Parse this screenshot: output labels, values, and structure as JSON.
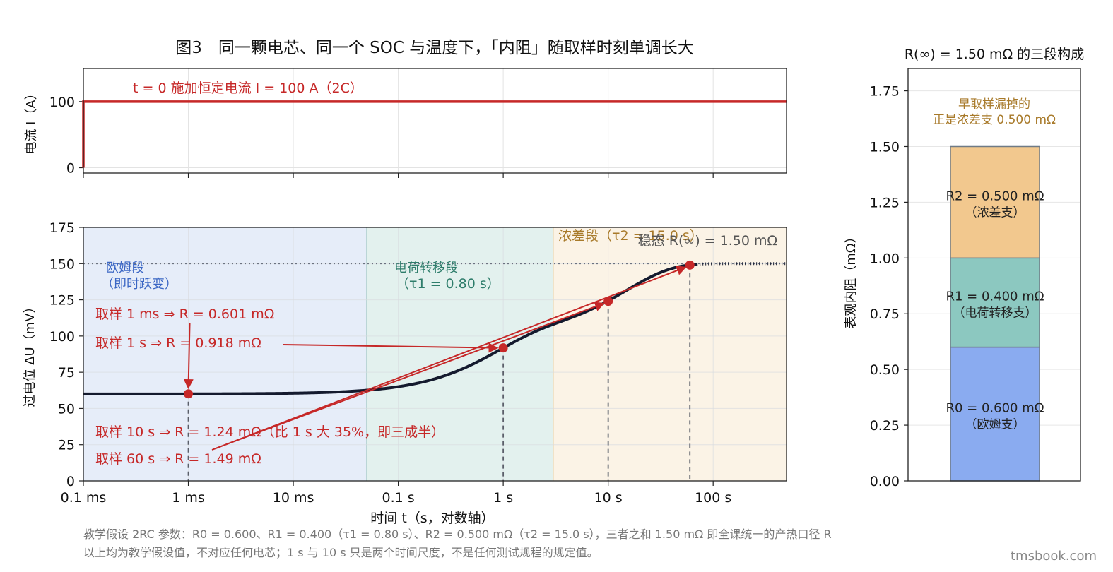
{
  "figure": {
    "title": "图3　同一颗电芯、同一个 SOC 与温度下，「内阻」随取样时刻单调长大",
    "footnote_1": "教学假设 2RC 参数：R0 = 0.600、R1 = 0.400（τ1 = 0.80 s）、R2 = 0.500 mΩ（τ2 = 15.0 s），三者之和 1.50 mΩ 即全课统一的产热口径 R",
    "footnote_2": "以上均为教学假设值，不对应任何电芯；1 s 与 10 s 只是两个时间尺度，不是任何测试规程的规定值。",
    "watermark": "tmsbook.com"
  },
  "colors": {
    "red": "#c62828",
    "curve": "#141a2e",
    "ohm_bg": "#e6edf9",
    "charge_bg": "#e3f1ee",
    "diff_bg": "#fbf3e6",
    "ohm_text": "#3a66c4",
    "charge_text": "#2e7d6b",
    "diff_text": "#a87a2a",
    "bar_r0": "#8aabf0",
    "bar_r1": "#8cc8c0",
    "bar_r2": "#f2c88e"
  },
  "chart_data": [
    {
      "type": "line",
      "panel": "current",
      "ylabel": "电流 I（A）",
      "x_scale": "log",
      "xlim": [
        0.0001,
        500
      ],
      "ylim": [
        -8,
        150
      ],
      "yticks": [
        0,
        100
      ],
      "grid": true,
      "series": [
        {
          "x": [
            0.0001,
            0.0001,
            500
          ],
          "y": [
            0,
            100,
            100
          ]
        }
      ],
      "annotation": "t = 0 施加恒定电流 I = 100 A（2C）"
    },
    {
      "type": "line",
      "panel": "voltage",
      "ylabel": "过电位 ΔU（mV）",
      "xlabel": "时间 t（s，对数轴）",
      "x_scale": "log",
      "xlim": [
        0.0001,
        500
      ],
      "ylim": [
        0,
        175
      ],
      "yticks": [
        0,
        25,
        50,
        75,
        100,
        125,
        150,
        175
      ],
      "xticks": [
        {
          "value": 0.0001,
          "label": "0.1 ms"
        },
        {
          "value": 0.001,
          "label": "1 ms"
        },
        {
          "value": 0.01,
          "label": "10 ms"
        },
        {
          "value": 0.1,
          "label": "0.1 s"
        },
        {
          "value": 1,
          "label": "1 s"
        },
        {
          "value": 10,
          "label": "10 s"
        },
        {
          "value": 100,
          "label": "100 s"
        }
      ],
      "grid": true,
      "model": {
        "current_A": 100,
        "R0_mOhm": 0.6,
        "R1_mOhm": 0.4,
        "tau1_s": 0.8,
        "R2_mOhm": 0.5,
        "tau2_s": 15.0
      },
      "steady_state": {
        "value": 150,
        "label": "稳态 R(∞) = 1.50 mΩ"
      },
      "regions": [
        {
          "name": "ohmic",
          "x0": 0.0001,
          "x1": 0.05,
          "label_1": "欧姆段",
          "label_2": "（即时跃变）"
        },
        {
          "name": "charge",
          "x0": 0.05,
          "x1": 3,
          "label_1": "电荷转移段",
          "label_2": "（τ1 = 0.80 s）"
        },
        {
          "name": "diffusion",
          "x0": 3,
          "x1": 500,
          "label_1": "浓差段（τ2 = 15.0 s）"
        }
      ],
      "samples": [
        {
          "t": 0.001,
          "dU": 60.1,
          "label": "取样 1 ms ⇒ R = 0.601 mΩ"
        },
        {
          "t": 1,
          "dU": 91.8,
          "label": "取样 1 s ⇒ R = 0.918 mΩ"
        },
        {
          "t": 10,
          "dU": 124,
          "label": "取样 10 s ⇒ R = 1.24 mΩ（比 1 s 大 35%，即三成半）"
        },
        {
          "t": 60,
          "dU": 149,
          "label": "取样 60 s ⇒ R = 1.49 mΩ"
        }
      ]
    },
    {
      "type": "bar",
      "panel": "composition",
      "title": "R(∞) = 1.50 mΩ 的三段构成",
      "ylabel": "表观内阻（mΩ）",
      "ylim": [
        0,
        1.85
      ],
      "yticks": [
        0.0,
        0.25,
        0.5,
        0.75,
        1.0,
        1.25,
        1.5,
        1.75
      ],
      "stacked": true,
      "segments": [
        {
          "name": "R0",
          "value": 0.6,
          "label_1": "R0 = 0.600 mΩ",
          "label_2": "（欧姆支）"
        },
        {
          "name": "R1",
          "value": 0.4,
          "label_1": "R1 = 0.400 mΩ",
          "label_2": "（电荷转移支）"
        },
        {
          "name": "R2",
          "value": 0.5,
          "label_1": "R2 = 0.500 mΩ",
          "label_2": "（浓差支）"
        }
      ],
      "note_1": "早取样漏掉的",
      "note_2": "正是浓差支 0.500 mΩ"
    }
  ]
}
